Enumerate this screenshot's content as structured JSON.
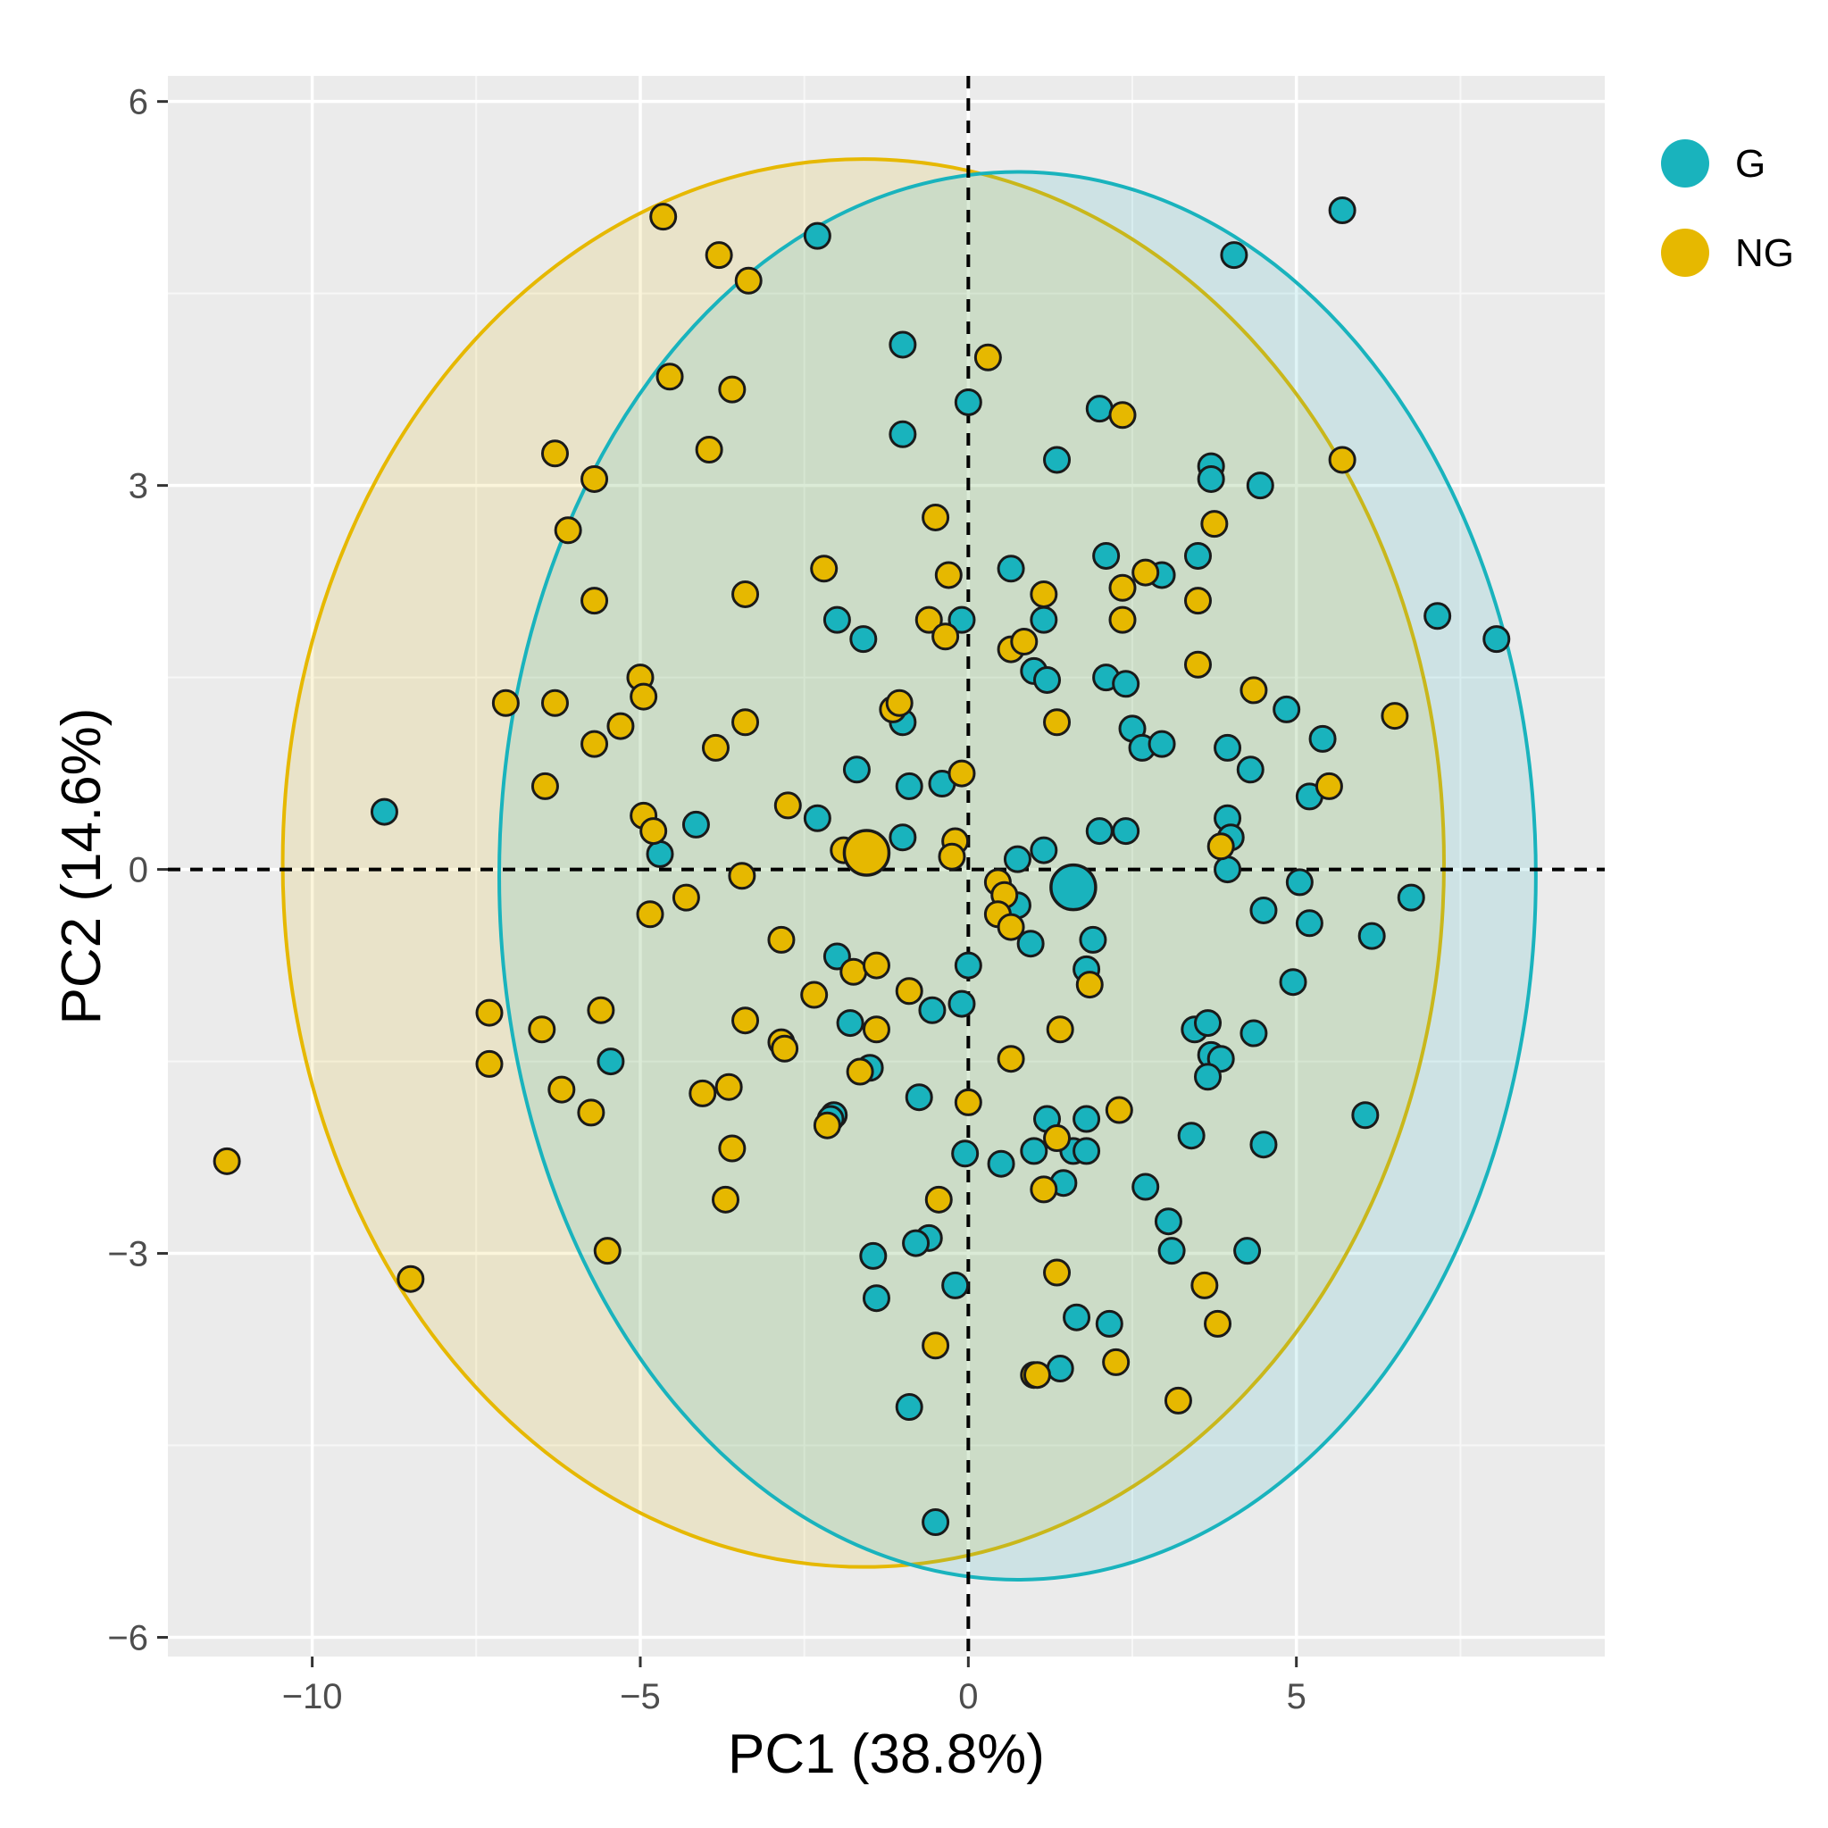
{
  "chart_data": {
    "type": "scatter",
    "xlabel": "PC1 (38.8%)",
    "ylabel": "PC2 (14.6%)",
    "xlim": [
      -12.2,
      9.7
    ],
    "ylim": [
      -6.15,
      6.2
    ],
    "x_ticks": [
      {
        "value": -10,
        "label": "−10"
      },
      {
        "value": -5,
        "label": "−5"
      },
      {
        "value": 0,
        "label": "0"
      },
      {
        "value": 5,
        "label": "5"
      }
    ],
    "y_ticks": [
      {
        "value": 6,
        "label": "6"
      },
      {
        "value": 3,
        "label": "3"
      },
      {
        "value": 0,
        "label": "0"
      },
      {
        "value": -3,
        "label": "−3"
      },
      {
        "value": -6,
        "label": "−6"
      }
    ],
    "grid": true,
    "reference_lines": {
      "x": 0,
      "y": 0,
      "style": "dashed"
    },
    "legend_position": "top-right",
    "series": [
      {
        "name": "G",
        "color": "#19b3bd",
        "centroid": [
          1.6,
          -0.14
        ],
        "ellipse": {
          "center": [
            0.75,
            -0.05
          ],
          "rx": 7.9,
          "ry": 5.5
        },
        "points": [
          [
            -2.3,
            4.95
          ],
          [
            5.7,
            5.15
          ],
          [
            4.05,
            4.8
          ],
          [
            -1.0,
            4.1
          ],
          [
            0.0,
            3.65
          ],
          [
            -1.0,
            3.4
          ],
          [
            2.0,
            3.6
          ],
          [
            1.35,
            3.2
          ],
          [
            3.7,
            3.15
          ],
          [
            3.7,
            3.05
          ],
          [
            4.45,
            3.0
          ],
          [
            0.65,
            2.35
          ],
          [
            2.1,
            2.45
          ],
          [
            3.5,
            2.45
          ],
          [
            2.95,
            2.3
          ],
          [
            -2.0,
            1.95
          ],
          [
            -1.6,
            1.8
          ],
          [
            -0.1,
            1.95
          ],
          [
            1.15,
            1.95
          ],
          [
            7.15,
            1.98
          ],
          [
            8.05,
            1.8
          ],
          [
            1.0,
            1.55
          ],
          [
            1.2,
            1.48
          ],
          [
            2.1,
            1.5
          ],
          [
            2.4,
            1.45
          ],
          [
            4.85,
            1.25
          ],
          [
            -1.0,
            1.15
          ],
          [
            2.5,
            1.1
          ],
          [
            2.65,
            0.95
          ],
          [
            2.95,
            0.98
          ],
          [
            5.4,
            1.02
          ],
          [
            3.95,
            0.95
          ],
          [
            4.3,
            0.78
          ],
          [
            -1.7,
            0.78
          ],
          [
            -0.9,
            0.65
          ],
          [
            -0.4,
            0.67
          ],
          [
            5.2,
            0.57
          ],
          [
            -8.9,
            0.45
          ],
          [
            -2.3,
            0.4
          ],
          [
            -4.15,
            0.35
          ],
          [
            2.0,
            0.3
          ],
          [
            2.4,
            0.3
          ],
          [
            3.95,
            0.4
          ],
          [
            4.0,
            0.25
          ],
          [
            -1.0,
            0.25
          ],
          [
            1.15,
            0.15
          ],
          [
            0.75,
            0.08
          ],
          [
            -4.7,
            0.12
          ],
          [
            3.95,
            0.0
          ],
          [
            5.05,
            -0.1
          ],
          [
            6.75,
            -0.22
          ],
          [
            0.75,
            -0.28
          ],
          [
            4.5,
            -0.32
          ],
          [
            5.2,
            -0.42
          ],
          [
            6.15,
            -0.52
          ],
          [
            1.9,
            -0.55
          ],
          [
            0.95,
            -0.58
          ],
          [
            1.8,
            -0.78
          ],
          [
            0.0,
            -0.75
          ],
          [
            4.95,
            -0.88
          ],
          [
            -2.0,
            -0.68
          ],
          [
            -0.1,
            -1.05
          ],
          [
            -0.55,
            -1.1
          ],
          [
            -1.8,
            -1.2
          ],
          [
            -5.45,
            -1.5
          ],
          [
            -1.5,
            -1.55
          ],
          [
            3.45,
            -1.25
          ],
          [
            3.65,
            -1.2
          ],
          [
            4.35,
            -1.28
          ],
          [
            3.7,
            -1.45
          ],
          [
            3.85,
            -1.48
          ],
          [
            3.65,
            -1.62
          ],
          [
            -0.75,
            -1.78
          ],
          [
            1.2,
            -1.95
          ],
          [
            1.8,
            -1.95
          ],
          [
            -2.05,
            -1.92
          ],
          [
            -2.1,
            -1.95
          ],
          [
            6.05,
            -1.92
          ],
          [
            3.4,
            -2.08
          ],
          [
            4.5,
            -2.15
          ],
          [
            -0.05,
            -2.22
          ],
          [
            1.0,
            -2.2
          ],
          [
            1.6,
            -2.2
          ],
          [
            1.8,
            -2.2
          ],
          [
            0.5,
            -2.3
          ],
          [
            1.45,
            -2.45
          ],
          [
            2.7,
            -2.48
          ],
          [
            3.05,
            -2.75
          ],
          [
            -0.6,
            -2.88
          ],
          [
            -0.8,
            -2.92
          ],
          [
            3.1,
            -2.98
          ],
          [
            4.25,
            -2.98
          ],
          [
            -1.45,
            -3.02
          ],
          [
            -0.2,
            -3.25
          ],
          [
            -1.4,
            -3.35
          ],
          [
            1.65,
            -3.5
          ],
          [
            2.15,
            -3.55
          ],
          [
            1.4,
            -3.9
          ],
          [
            -0.9,
            -4.2
          ],
          [
            -0.5,
            -5.1
          ]
        ]
      },
      {
        "name": "NG",
        "color": "#e6b800",
        "centroid": [
          -1.55,
          0.13
        ],
        "ellipse": {
          "center": [
            -1.6,
            0.05
          ],
          "rx": 8.85,
          "ry": 5.5
        },
        "points": [
          [
            -4.65,
            5.1
          ],
          [
            -3.8,
            4.8
          ],
          [
            -3.35,
            4.6
          ],
          [
            0.3,
            4.0
          ],
          [
            -4.55,
            3.85
          ],
          [
            -3.6,
            3.75
          ],
          [
            2.35,
            3.55
          ],
          [
            -3.95,
            3.28
          ],
          [
            -6.3,
            3.25
          ],
          [
            5.7,
            3.2
          ],
          [
            -5.7,
            3.05
          ],
          [
            -0.5,
            2.75
          ],
          [
            3.75,
            2.7
          ],
          [
            -6.1,
            2.65
          ],
          [
            -2.2,
            2.35
          ],
          [
            -0.3,
            2.3
          ],
          [
            2.7,
            2.32
          ],
          [
            2.35,
            2.2
          ],
          [
            -3.4,
            2.15
          ],
          [
            1.15,
            2.15
          ],
          [
            -5.7,
            2.1
          ],
          [
            3.5,
            2.1
          ],
          [
            -0.6,
            1.95
          ],
          [
            2.35,
            1.95
          ],
          [
            -0.35,
            1.82
          ],
          [
            0.65,
            1.72
          ],
          [
            0.85,
            1.78
          ],
          [
            3.5,
            1.6
          ],
          [
            -5.0,
            1.5
          ],
          [
            -4.95,
            1.35
          ],
          [
            -7.05,
            1.3
          ],
          [
            -6.3,
            1.3
          ],
          [
            4.35,
            1.4
          ],
          [
            -1.15,
            1.25
          ],
          [
            -1.05,
            1.3
          ],
          [
            6.5,
            1.2
          ],
          [
            -5.3,
            1.12
          ],
          [
            -3.4,
            1.15
          ],
          [
            1.35,
            1.15
          ],
          [
            -5.7,
            0.98
          ],
          [
            -3.85,
            0.95
          ],
          [
            -0.1,
            0.75
          ],
          [
            5.5,
            0.65
          ],
          [
            -6.45,
            0.65
          ],
          [
            -2.75,
            0.5
          ],
          [
            -4.95,
            0.42
          ],
          [
            -4.8,
            0.3
          ],
          [
            -0.2,
            0.22
          ],
          [
            -0.25,
            0.1
          ],
          [
            -1.9,
            0.15
          ],
          [
            3.85,
            0.18
          ],
          [
            0.45,
            -0.1
          ],
          [
            -3.45,
            -0.05
          ],
          [
            0.55,
            -0.2
          ],
          [
            -4.3,
            -0.22
          ],
          [
            -4.85,
            -0.35
          ],
          [
            0.45,
            -0.35
          ],
          [
            0.65,
            -0.45
          ],
          [
            -2.85,
            -0.55
          ],
          [
            -1.75,
            -0.8
          ],
          [
            -1.4,
            -0.75
          ],
          [
            1.85,
            -0.9
          ],
          [
            -0.9,
            -0.95
          ],
          [
            -2.35,
            -0.98
          ],
          [
            -5.6,
            -1.1
          ],
          [
            -7.3,
            -1.12
          ],
          [
            -3.4,
            -1.18
          ],
          [
            -6.5,
            -1.25
          ],
          [
            -1.4,
            -1.25
          ],
          [
            1.4,
            -1.25
          ],
          [
            -2.85,
            -1.35
          ],
          [
            -2.8,
            -1.4
          ],
          [
            0.65,
            -1.48
          ],
          [
            -7.3,
            -1.52
          ],
          [
            -1.65,
            -1.58
          ],
          [
            -3.65,
            -1.7
          ],
          [
            -4.05,
            -1.75
          ],
          [
            -6.2,
            -1.72
          ],
          [
            -5.75,
            -1.9
          ],
          [
            0.0,
            -1.82
          ],
          [
            2.3,
            -1.88
          ],
          [
            -2.15,
            -2.0
          ],
          [
            1.35,
            -2.1
          ],
          [
            -3.6,
            -2.18
          ],
          [
            -11.3,
            -2.28
          ],
          [
            1.15,
            -2.5
          ],
          [
            -3.7,
            -2.58
          ],
          [
            -0.45,
            -2.58
          ],
          [
            -5.5,
            -2.98
          ],
          [
            -8.5,
            -3.2
          ],
          [
            1.35,
            -3.15
          ],
          [
            3.6,
            -3.25
          ],
          [
            3.8,
            -3.55
          ],
          [
            -0.5,
            -3.72
          ],
          [
            2.25,
            -3.85
          ],
          [
            1.0,
            -3.95
          ],
          [
            1.05,
            -3.95
          ],
          [
            3.2,
            -4.15
          ]
        ]
      }
    ]
  }
}
